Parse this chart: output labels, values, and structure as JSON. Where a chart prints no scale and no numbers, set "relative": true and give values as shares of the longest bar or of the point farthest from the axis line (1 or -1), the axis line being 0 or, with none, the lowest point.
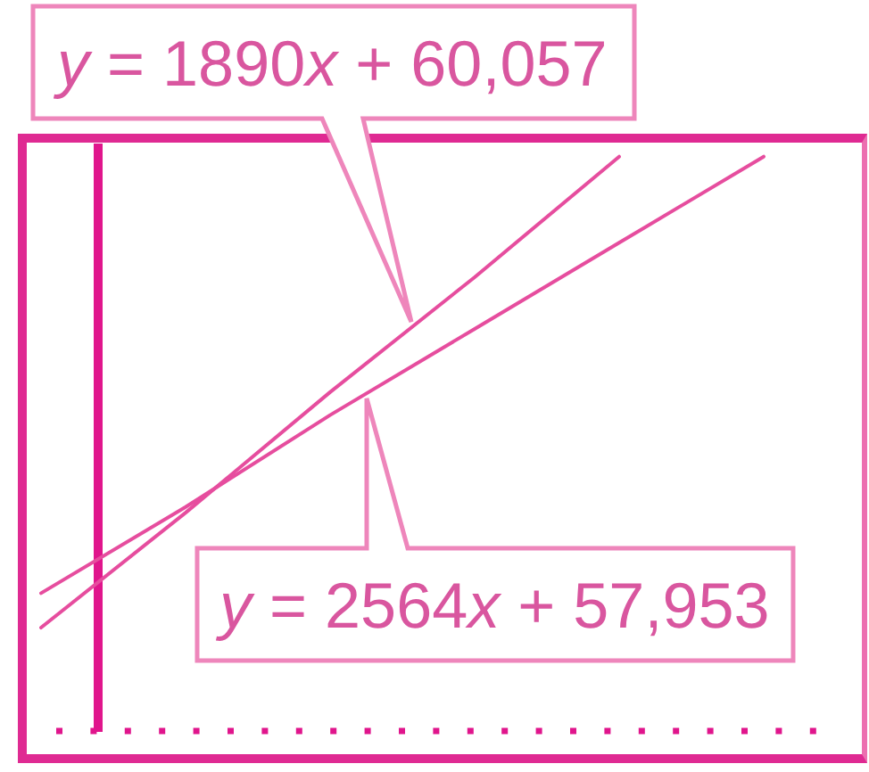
{
  "chart_data": {
    "type": "line",
    "relative": true,
    "categories": [
      null,
      null,
      null,
      null,
      null,
      null
    ],
    "series": [
      {
        "color": "#e64d9e",
        "values": [
          0.18,
          0.38,
          0.59,
          0.79,
          1.0,
          null
        ]
      },
      {
        "color": "#e64d9e",
        "values": [
          0.24,
          0.39,
          0.55,
          0.7,
          0.85,
          1.0
        ]
      }
    ],
    "annotations": [
      "y = 1890x + 60,057",
      "y = 2564x + 57,953"
    ]
  }
}
